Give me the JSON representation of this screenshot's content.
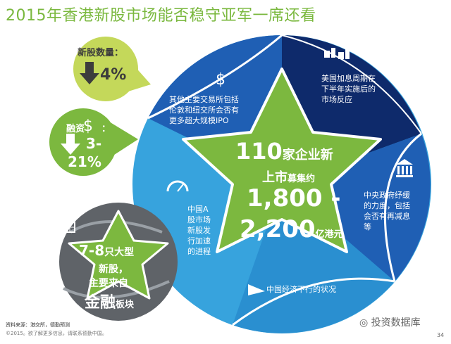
{
  "title": "2015年香港新股市场能否稳守亚军一席还看",
  "left_panels": {
    "ipo_count": {
      "label": "新股数量：",
      "value": "4%"
    },
    "fundraising": {
      "label": "融资",
      "label_colon": "：",
      "value_line1": "3-",
      "value_line2": "21%"
    },
    "big_ipo": {
      "line1_big": "7-8",
      "line1_small": "只大型",
      "line2": "新股，",
      "line3": "主要来自",
      "line4_big": "金融",
      "line4_small": "板块"
    }
  },
  "center_star": {
    "line1_num": "110",
    "line1_text": "家企业新",
    "line2_a": "上市",
    "line2_b": "募集约",
    "line3": "1,800 -",
    "line4_num": "2,200",
    "line4_unit": "亿港元"
  },
  "segments": {
    "exchanges": {
      "icon": "dollar-icon",
      "lines": [
        "其他主要交易所包括",
        "伦敦和纽交所会否有",
        "更多超大规模IPO"
      ]
    },
    "rate_hike": {
      "icon": "thumbs-icon",
      "lines": [
        "美国加息周期在",
        "下半年实施后的",
        "市场反应"
      ]
    },
    "government": {
      "icon": "government-building-icon",
      "lines": [
        "中央政府纾缓",
        "的力度，包括",
        "会否有再减息",
        "等"
      ]
    },
    "economy": {
      "icon": "downtrend-arrow-icon",
      "text": "中国经济下行的状况"
    },
    "china_a": {
      "icon": "speedometer-icon",
      "lines": [
        "中国A",
        "股市场",
        "新股发",
        "行加速",
        "的进程"
      ]
    }
  },
  "footer": {
    "source": "资料来源：港交所，德勤预测",
    "copyright": "©2015。欲了解更多信息，请联系德勤中国。",
    "page": "34"
  },
  "watermark": "投资数据库",
  "colors": {
    "title_green": "#7ab83e",
    "dark_navy": "#0e2a6b",
    "royal_blue": "#1f5fb4",
    "light_blue": "#37a3dd",
    "star_green": "#7cb83f",
    "grey_circle": "#5f6368"
  }
}
